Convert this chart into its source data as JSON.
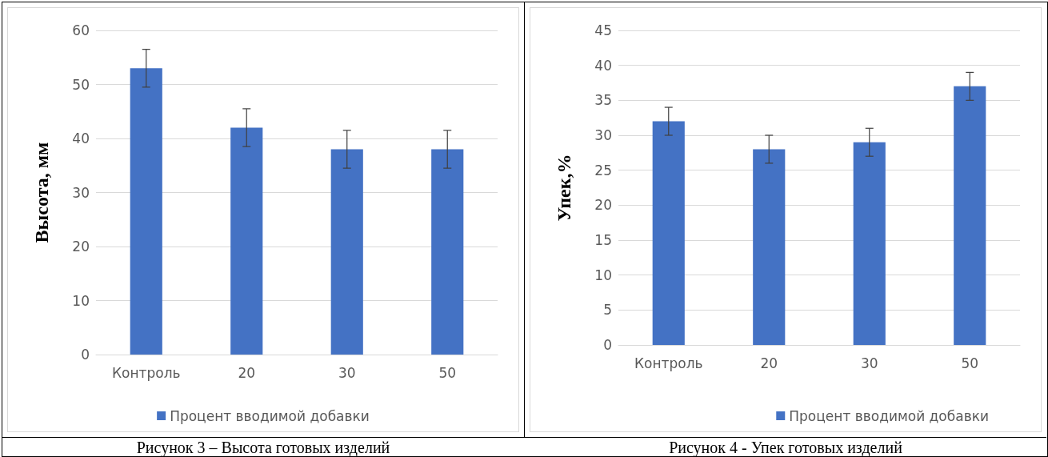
{
  "chart_data": [
    {
      "type": "bar",
      "ylabel": "Высота, мм",
      "categories": [
        "Контроль",
        "20",
        "30",
        "50"
      ],
      "series": [
        {
          "name": "Процент вводимой добавки",
          "color": "#4472c4",
          "values": [
            53,
            42,
            38,
            38
          ],
          "errors": [
            3.5,
            3.5,
            3.5,
            3.5
          ]
        }
      ],
      "ylim": [
        0,
        60
      ],
      "yticks": [
        0,
        10,
        20,
        30,
        40,
        50,
        60
      ],
      "grid": "y",
      "legend": "bottom",
      "annotations": [
        "Рисунок 3 – Высота готовых изделий"
      ]
    },
    {
      "type": "bar",
      "ylabel": "Упек,%",
      "categories": [
        "Контроль",
        "20",
        "30",
        "50"
      ],
      "series": [
        {
          "name": "Процент вводимой добавки",
          "color": "#4472c4",
          "values": [
            32,
            28,
            29,
            37
          ],
          "errors": [
            2,
            2,
            2,
            2
          ]
        }
      ],
      "ylim": [
        0,
        45
      ],
      "yticks": [
        0,
        5,
        10,
        15,
        20,
        25,
        30,
        35,
        40,
        45
      ],
      "grid": "y",
      "legend": "bottom right",
      "annotations": [
        "Рисунок 4 - Упек готовых изделий"
      ]
    }
  ]
}
